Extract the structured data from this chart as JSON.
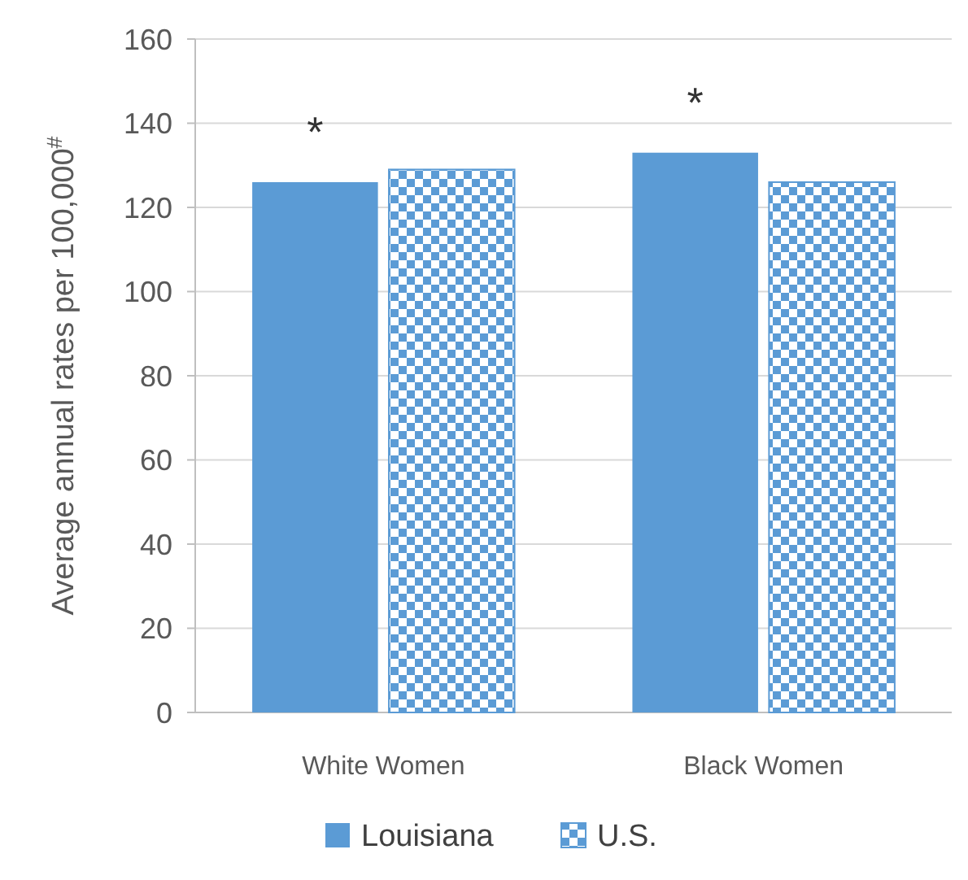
{
  "chart_data": {
    "type": "bar",
    "ylabel": "Average annual rates per 100,000$^{#}$",
    "categories": [
      "White Women",
      "Black Women"
    ],
    "series": [
      {
        "name": "Louisiana",
        "color": "#5b9bd5",
        "values": [
          126,
          133
        ]
      },
      {
        "name": "U.S.",
        "color": "#5b9bd5",
        "values": [
          129,
          126
        ]
      }
    ],
    "ylim": [
      0,
      160
    ],
    "yticks": [
      0,
      20,
      40,
      60,
      80,
      100,
      120,
      140,
      160
    ],
    "grid": "y",
    "legend": "bottom",
    "annotations": [
      {
        "text": "*",
        "x": "White Women",
        "y": 126
      },
      {
        "text": "*",
        "x": "Black Women",
        "y": 133
      }
    ]
  }
}
